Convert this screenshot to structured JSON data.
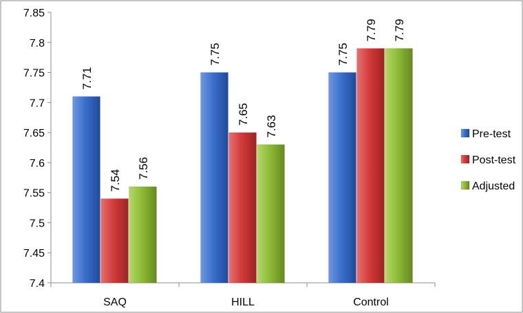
{
  "chart_data": {
    "type": "bar",
    "title": "",
    "xlabel": "",
    "ylabel": "",
    "ylim": [
      7.4,
      7.85
    ],
    "yticks": [
      "7.4",
      "7.45",
      "7.5",
      "7.55",
      "7.6",
      "7.65",
      "7.7",
      "7.75",
      "7.8",
      "7.85"
    ],
    "categories": [
      "SAQ",
      "HILL",
      "Control"
    ],
    "series": [
      {
        "name": "Pre-test",
        "values": [
          7.71,
          7.75,
          7.75
        ],
        "labels": [
          "7.71",
          "7.75",
          "7.75"
        ],
        "color": "#3b6fcc"
      },
      {
        "name": "Post-test",
        "values": [
          7.54,
          7.65,
          7.79
        ],
        "labels": [
          "7.54",
          "7.65",
          "7.79"
        ],
        "color": "#d33b3b"
      },
      {
        "name": "Adjusted",
        "values": [
          7.56,
          7.63,
          7.79
        ],
        "labels": [
          "7.56",
          "7.63",
          "7.79"
        ],
        "color": "#8fbc35"
      }
    ],
    "legend_position": "right",
    "grid": false
  }
}
